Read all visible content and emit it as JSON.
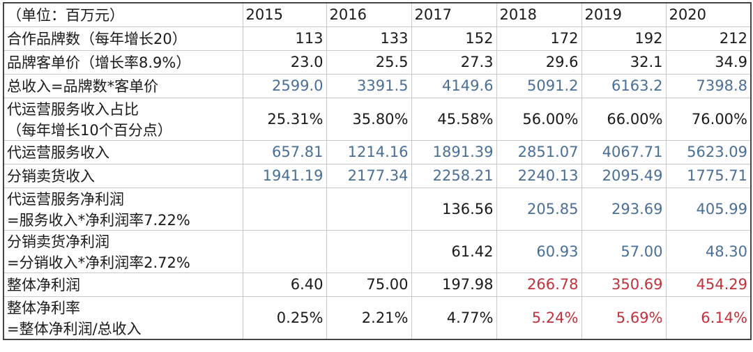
{
  "table": {
    "header": {
      "label": "（单位：百万元）",
      "years": [
        "2015",
        "2016",
        "2017",
        "2018",
        "2019",
        "2020"
      ]
    },
    "rows": [
      {
        "label": [
          "合作品牌数（每年增长20）"
        ],
        "values": [
          "113",
          "133",
          "152",
          "172",
          "192",
          "212"
        ],
        "colors": [
          "black",
          "black",
          "black",
          "black",
          "black",
          "black"
        ]
      },
      {
        "label": [
          "品牌客单价（增长率8.9%）"
        ],
        "values": [
          "23.0",
          "25.5",
          "27.3",
          "29.6",
          "32.1",
          "34.9"
        ],
        "colors": [
          "black",
          "black",
          "black",
          "black",
          "black",
          "black"
        ]
      },
      {
        "label": [
          "总收入=品牌数*客单价"
        ],
        "values": [
          "2599.0",
          "3391.5",
          "4149.6",
          "5091.2",
          "6163.2",
          "7398.8"
        ],
        "colors": [
          "blue",
          "blue",
          "blue",
          "blue",
          "blue",
          "blue"
        ]
      },
      {
        "label": [
          "代运营服务收入占比",
          "（每年增长10个百分点）"
        ],
        "values": [
          "25.31%",
          "35.80%",
          "45.58%",
          "56.00%",
          "66.00%",
          "76.00%"
        ],
        "colors": [
          "black",
          "black",
          "black",
          "black",
          "black",
          "black"
        ]
      },
      {
        "label": [
          "代运营服务收入"
        ],
        "values": [
          "657.81",
          "1214.16",
          "1891.39",
          "2851.07",
          "4067.71",
          "5623.09"
        ],
        "colors": [
          "blue",
          "blue",
          "blue",
          "blue",
          "blue",
          "blue"
        ]
      },
      {
        "label": [
          "分销卖货收入"
        ],
        "values": [
          "1941.19",
          "2177.34",
          "2258.21",
          "2240.13",
          "2095.49",
          "1775.71"
        ],
        "colors": [
          "blue",
          "blue",
          "blue",
          "blue",
          "blue",
          "blue"
        ]
      },
      {
        "label": [
          "代运营服务净利润",
          "=服务收入*净利润率7.22%"
        ],
        "values": [
          "",
          "",
          "136.56",
          "205.85",
          "293.69",
          "405.99"
        ],
        "colors": [
          "black",
          "black",
          "black",
          "blue",
          "blue",
          "blue"
        ]
      },
      {
        "label": [
          "分销卖货净利润",
          "=分销收入*净利润率2.72%"
        ],
        "values": [
          "",
          "",
          "61.42",
          "60.93",
          "57.00",
          "48.30"
        ],
        "colors": [
          "black",
          "black",
          "black",
          "blue",
          "blue",
          "blue"
        ]
      },
      {
        "label": [
          "整体净利润"
        ],
        "values": [
          "6.40",
          "75.00",
          "197.98",
          "266.78",
          "350.69",
          "454.29"
        ],
        "colors": [
          "black",
          "black",
          "black",
          "red",
          "red",
          "red"
        ]
      },
      {
        "label": [
          "整体净利率",
          "=整体净利润/总收入"
        ],
        "values": [
          "0.25%",
          "2.21%",
          "4.77%",
          "5.24%",
          "5.69%",
          "6.14%"
        ],
        "colors": [
          "black",
          "black",
          "black",
          "red",
          "red",
          "red"
        ]
      }
    ]
  },
  "colors": {
    "text": "#1a1a1a",
    "blue": "#4a6f96",
    "red": "#c0323a",
    "grid": "#c9c9c9",
    "border": "#444444"
  }
}
